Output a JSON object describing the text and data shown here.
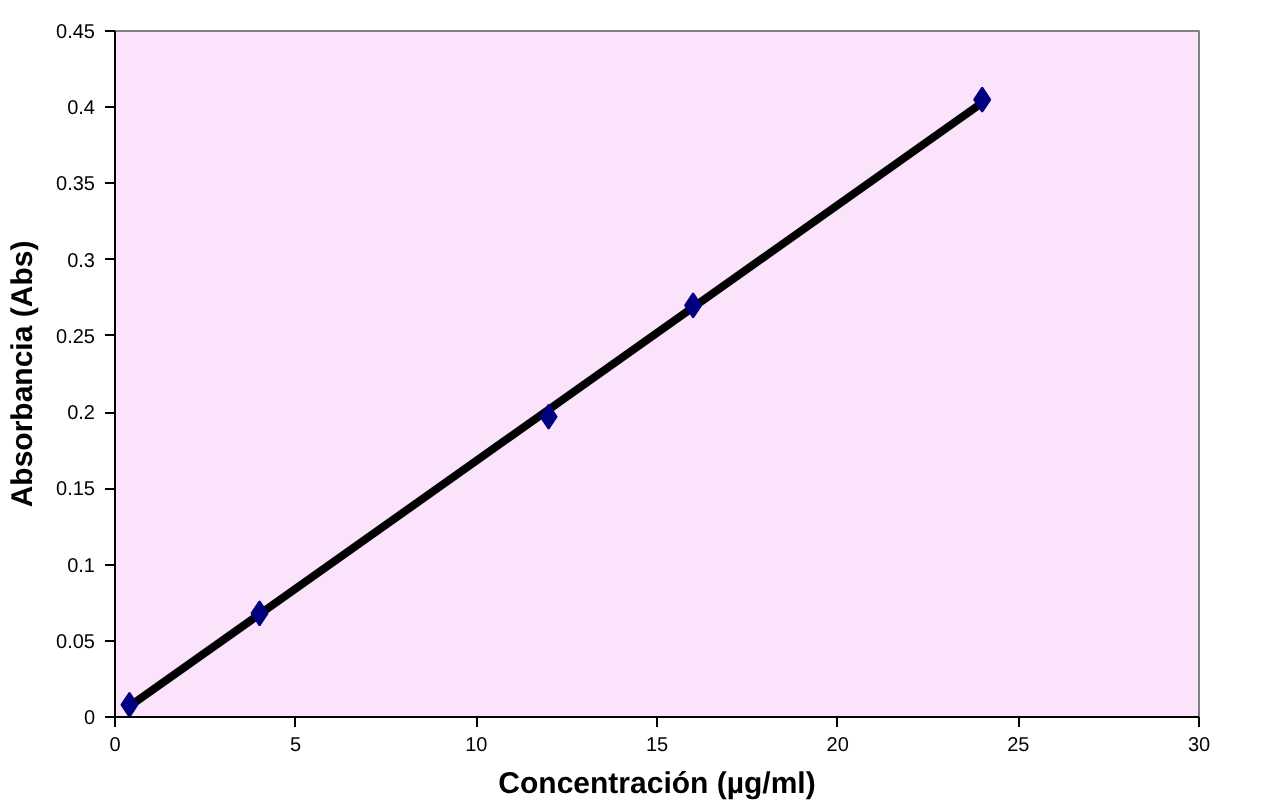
{
  "chart_data": {
    "type": "scatter",
    "xlabel": "Concentración (µg/ml)",
    "ylabel": "Absorbancia (Abs)",
    "series": [
      {
        "type": "line",
        "color": "#000000",
        "x": [
          0.4,
          24
        ],
        "values": [
          0.007,
          0.403
        ],
        "marker": "none",
        "line_style": "solid"
      },
      {
        "color": "#000080",
        "x": [
          0.4,
          4,
          12,
          16,
          24
        ],
        "values": [
          0.008,
          0.068,
          0.197,
          0.27,
          0.405
        ],
        "marker": "diamond"
      }
    ],
    "xlim": [
      0,
      30
    ],
    "xticks": [
      0,
      5,
      10,
      15,
      20,
      25,
      30
    ],
    "ylim": [
      0,
      0.45
    ],
    "yticks": [
      0,
      0.05,
      0.1,
      0.15,
      0.2,
      0.25,
      0.3,
      0.35,
      0.4,
      0.45
    ],
    "grid": false
  }
}
